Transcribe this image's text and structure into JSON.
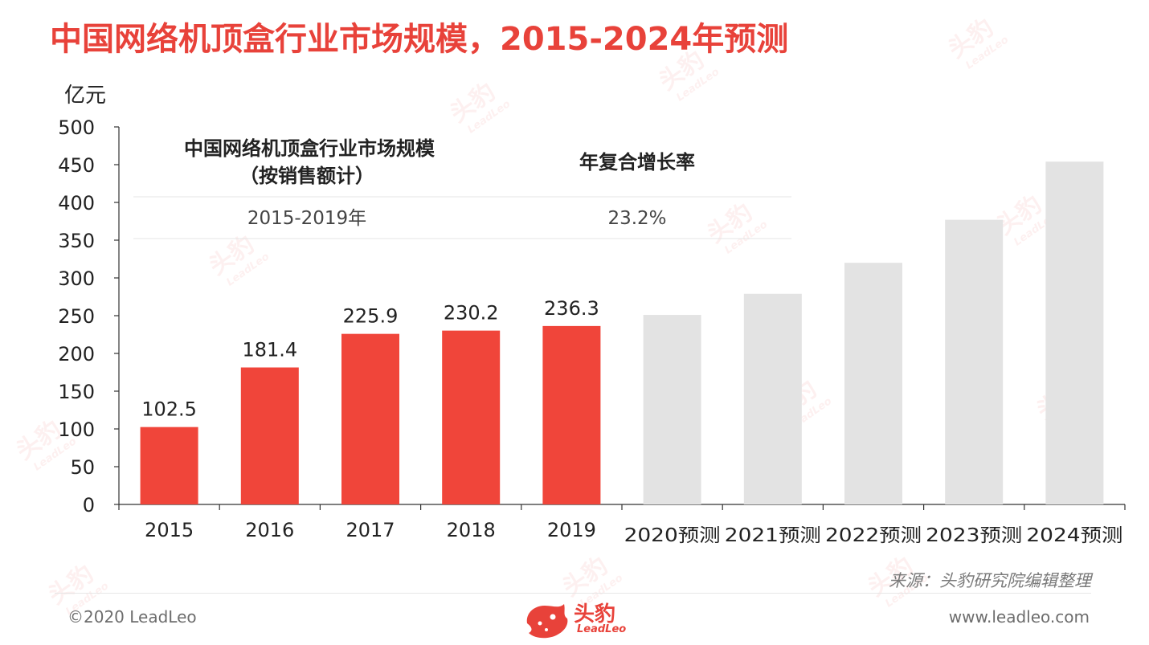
{
  "title": "中国网络机顶盒行业市场规模，2015-2024年预测",
  "unit": "亿元",
  "chart_data": {
    "type": "bar",
    "categories": [
      "2015",
      "2016",
      "2017",
      "2018",
      "2019",
      "2020预测",
      "2021预测",
      "2022预测",
      "2023预测",
      "2024预测"
    ],
    "values": [
      102.5,
      181.4,
      225.9,
      230.2,
      236.3,
      251,
      279,
      320,
      377,
      454
    ],
    "data_labels": [
      "102.5",
      "181.4",
      "225.9",
      "230.2",
      "236.3",
      "",
      "",
      "",
      "",
      ""
    ],
    "forecast_from_index": 5,
    "ylim": [
      0,
      500
    ],
    "yticks": [
      "0",
      "50",
      "100",
      "150",
      "200",
      "250",
      "300",
      "350",
      "400",
      "450",
      "500"
    ],
    "ylabel": "亿元",
    "grid": false,
    "colors": {
      "actual": "#f0453a",
      "forecast": "#e3e3e3"
    }
  },
  "inset_table": {
    "header_1": "中国网络机顶盒行业市场规模",
    "header_1b": "（按销售额计）",
    "header_2": "年复合增长率",
    "period": "2015-2019年",
    "cagr": "23.2%"
  },
  "source": "来源：头豹研究院编辑整理",
  "footer": {
    "copyright": "©2020 LeadLeo",
    "website": "www.leadleo.com",
    "logo_cn": "头豹",
    "logo_en": "LeadLeo"
  },
  "colors": {
    "accent": "#e8423a"
  }
}
